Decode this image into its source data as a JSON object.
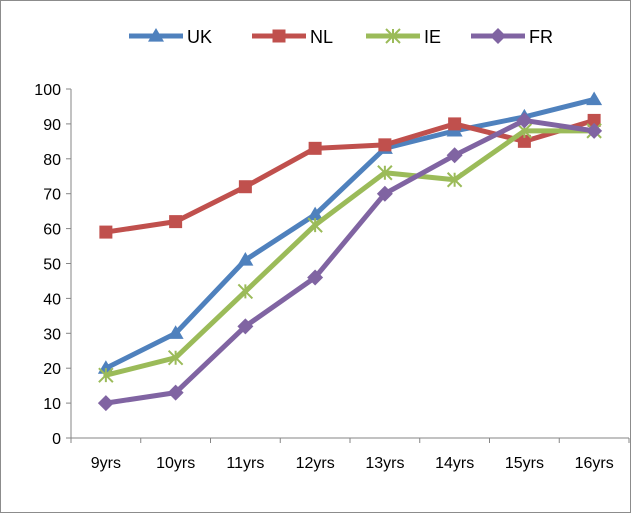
{
  "chart_data": {
    "type": "line",
    "categories": [
      "9yrs",
      "10yrs",
      "11yrs",
      "12yrs",
      "13yrs",
      "14yrs",
      "15yrs",
      "16yrs"
    ],
    "series": [
      {
        "name": "UK",
        "values": [
          20,
          30,
          51,
          64,
          83,
          88,
          92,
          97
        ],
        "color": "#4f81bd",
        "marker": "triangle"
      },
      {
        "name": "NL",
        "values": [
          59,
          62,
          72,
          83,
          84,
          90,
          85,
          91
        ],
        "color": "#c0504d",
        "marker": "square"
      },
      {
        "name": "IE",
        "values": [
          18,
          23,
          42,
          61,
          76,
          74,
          88,
          88
        ],
        "color": "#9bbb59",
        "marker": "asterisk"
      },
      {
        "name": "FR",
        "values": [
          10,
          13,
          32,
          46,
          70,
          81,
          91,
          88
        ],
        "color": "#8064a2",
        "marker": "diamond"
      }
    ],
    "yticks": [
      0,
      10,
      20,
      30,
      40,
      50,
      60,
      70,
      80,
      90,
      100
    ],
    "ylim": [
      0,
      100
    ],
    "title": "",
    "xlabel": "",
    "ylabel": "",
    "legend": "top",
    "grid": false
  }
}
